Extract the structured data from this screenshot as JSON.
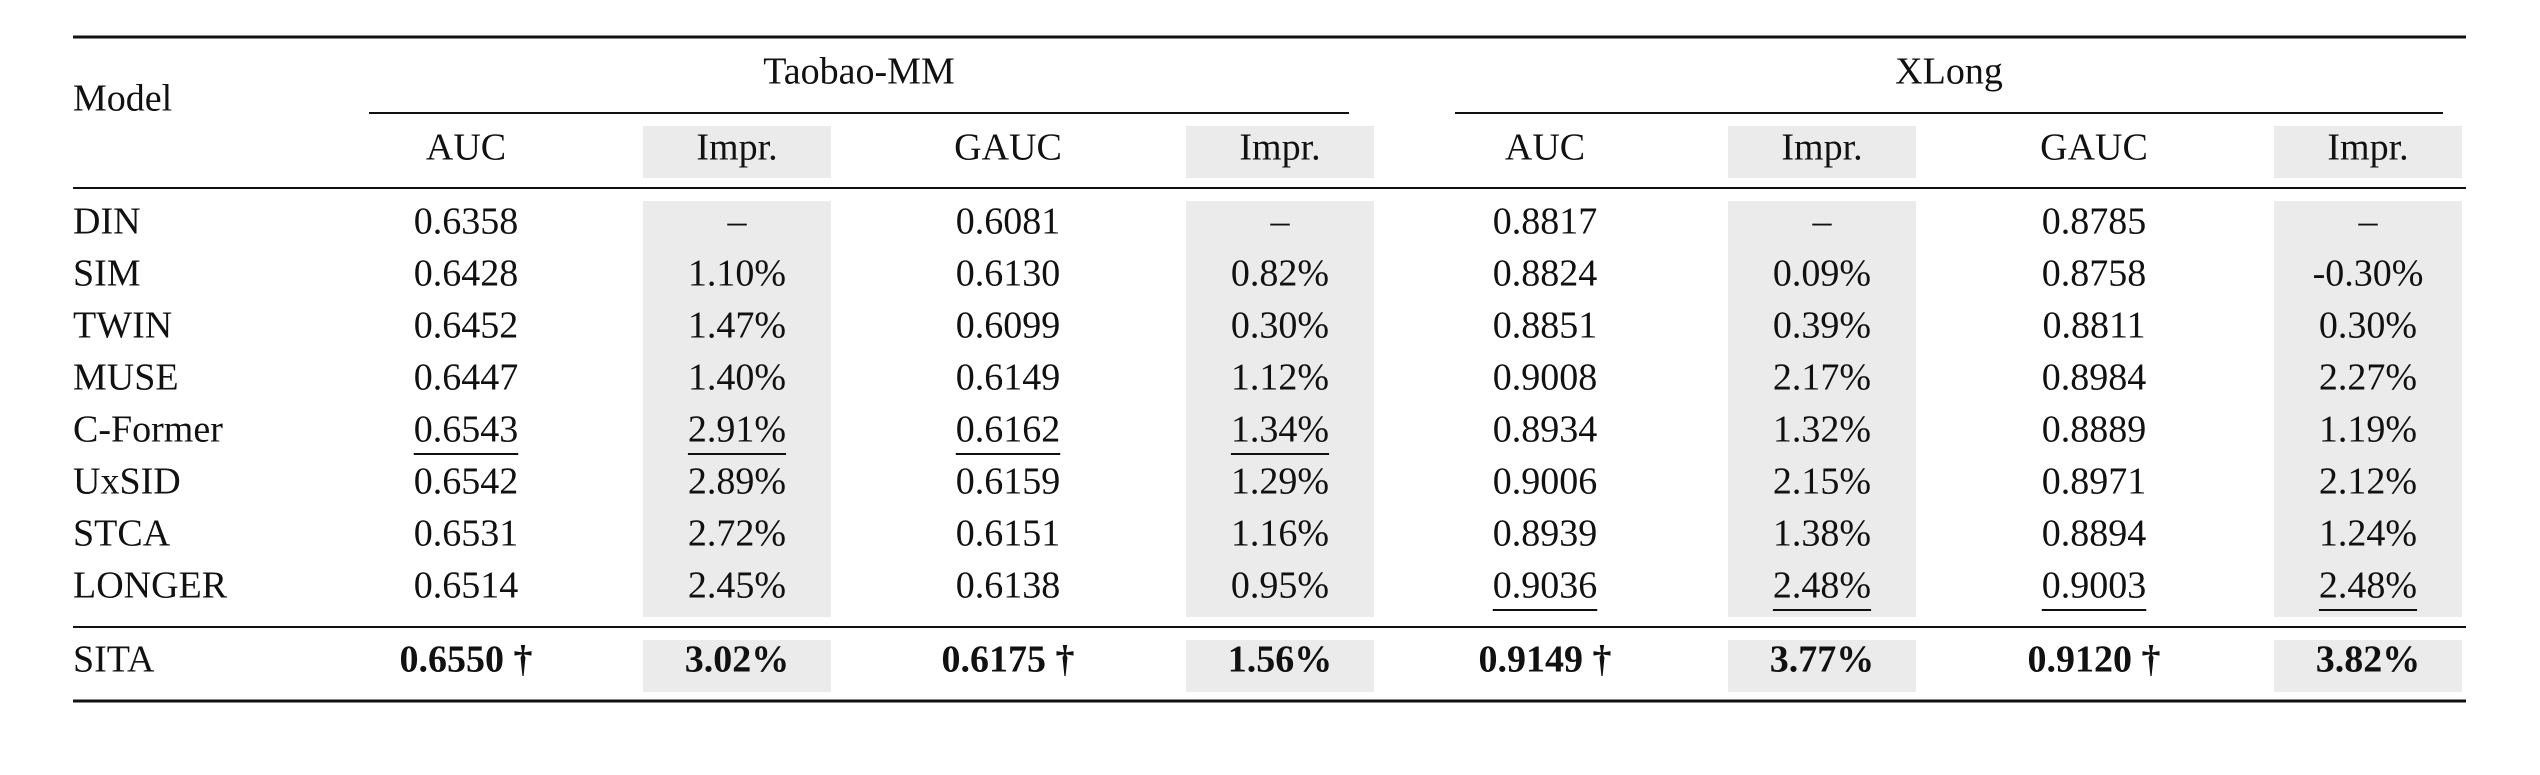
{
  "table": {
    "header": {
      "model": "Model",
      "groups": [
        {
          "name": "Taobao-MM",
          "columns": [
            "AUC",
            "Impr.",
            "GAUC",
            "Impr."
          ]
        },
        {
          "name": "XLong",
          "columns": [
            "AUC",
            "Impr.",
            "GAUC",
            "Impr."
          ]
        }
      ]
    },
    "rows": [
      [
        "DIN",
        "0.6358",
        "–",
        "0.6081",
        "–",
        "0.8817",
        "–",
        "0.8785",
        "–"
      ],
      [
        "SIM",
        "0.6428",
        "1.10%",
        "0.6130",
        "0.82%",
        "0.8824",
        "0.09%",
        "0.8758",
        "-0.30%"
      ],
      [
        "TWIN",
        "0.6452",
        "1.47%",
        "0.6099",
        "0.30%",
        "0.8851",
        "0.39%",
        "0.8811",
        "0.30%"
      ],
      [
        "MUSE",
        "0.6447",
        "1.40%",
        "0.6149",
        "1.12%",
        "0.9008",
        "2.17%",
        "0.8984",
        "2.27%"
      ],
      [
        "C-Former",
        "0.6543",
        "2.91%",
        "0.6162",
        "1.34%",
        "0.8934",
        "1.32%",
        "0.8889",
        "1.19%"
      ],
      [
        "UxSID",
        "0.6542",
        "2.89%",
        "0.6159",
        "1.29%",
        "0.9006",
        "2.15%",
        "0.8971",
        "2.12%"
      ],
      [
        "STCA",
        "0.6531",
        "2.72%",
        "0.6151",
        "1.16%",
        "0.8939",
        "1.38%",
        "0.8894",
        "1.24%"
      ],
      [
        "LONGER",
        "0.6514",
        "2.45%",
        "0.6138",
        "0.95%",
        "0.9036",
        "2.48%",
        "0.9003",
        "2.48%"
      ],
      [
        "SITA",
        "0.6550 †",
        "3.02%",
        "0.6175 †",
        "1.56%",
        "0.9149 †",
        "3.77%",
        "0.9120 †",
        "3.82%"
      ]
    ]
  }
}
